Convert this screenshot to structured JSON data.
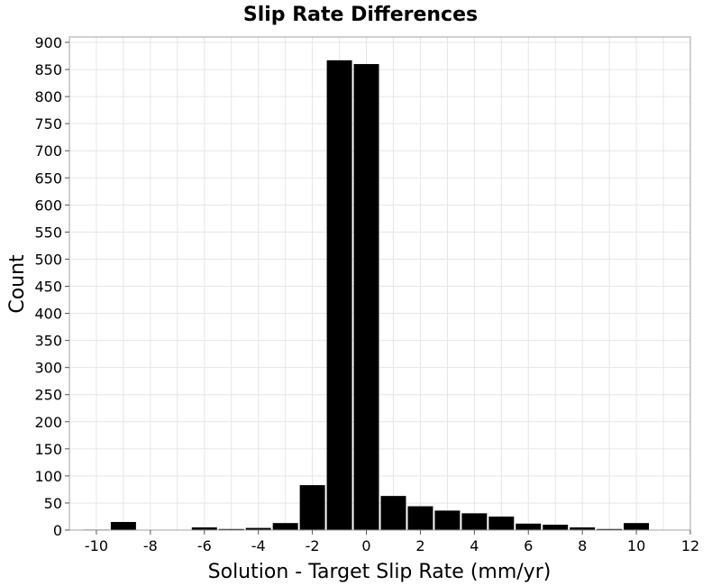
{
  "chart_data": {
    "type": "bar",
    "title": "Slip Rate Differences",
    "xlabel": "Solution - Target Slip Rate (mm/yr)",
    "ylabel": "Count",
    "xlim": [
      -11,
      12
    ],
    "ylim": [
      0,
      910
    ],
    "x_ticks": [
      -10,
      -8,
      -6,
      -4,
      -2,
      0,
      2,
      4,
      6,
      8,
      10,
      12
    ],
    "y_ticks": [
      0,
      50,
      100,
      150,
      200,
      250,
      300,
      350,
      400,
      450,
      500,
      550,
      600,
      650,
      700,
      750,
      800,
      850,
      900
    ],
    "bin_width": 1,
    "x": [
      -10,
      -9,
      -8,
      -7,
      -6,
      -5,
      -4,
      -3,
      -2,
      -1,
      0,
      1,
      2,
      3,
      4,
      5,
      6,
      7,
      8,
      9,
      10
    ],
    "values": [
      1,
      15,
      0,
      0,
      5,
      2,
      4,
      13,
      83,
      867,
      860,
      63,
      44,
      36,
      31,
      25,
      12,
      10,
      5,
      2,
      13
    ],
    "grid": true,
    "bar_color": "#000000",
    "grid_color": "#e6e6e6"
  }
}
